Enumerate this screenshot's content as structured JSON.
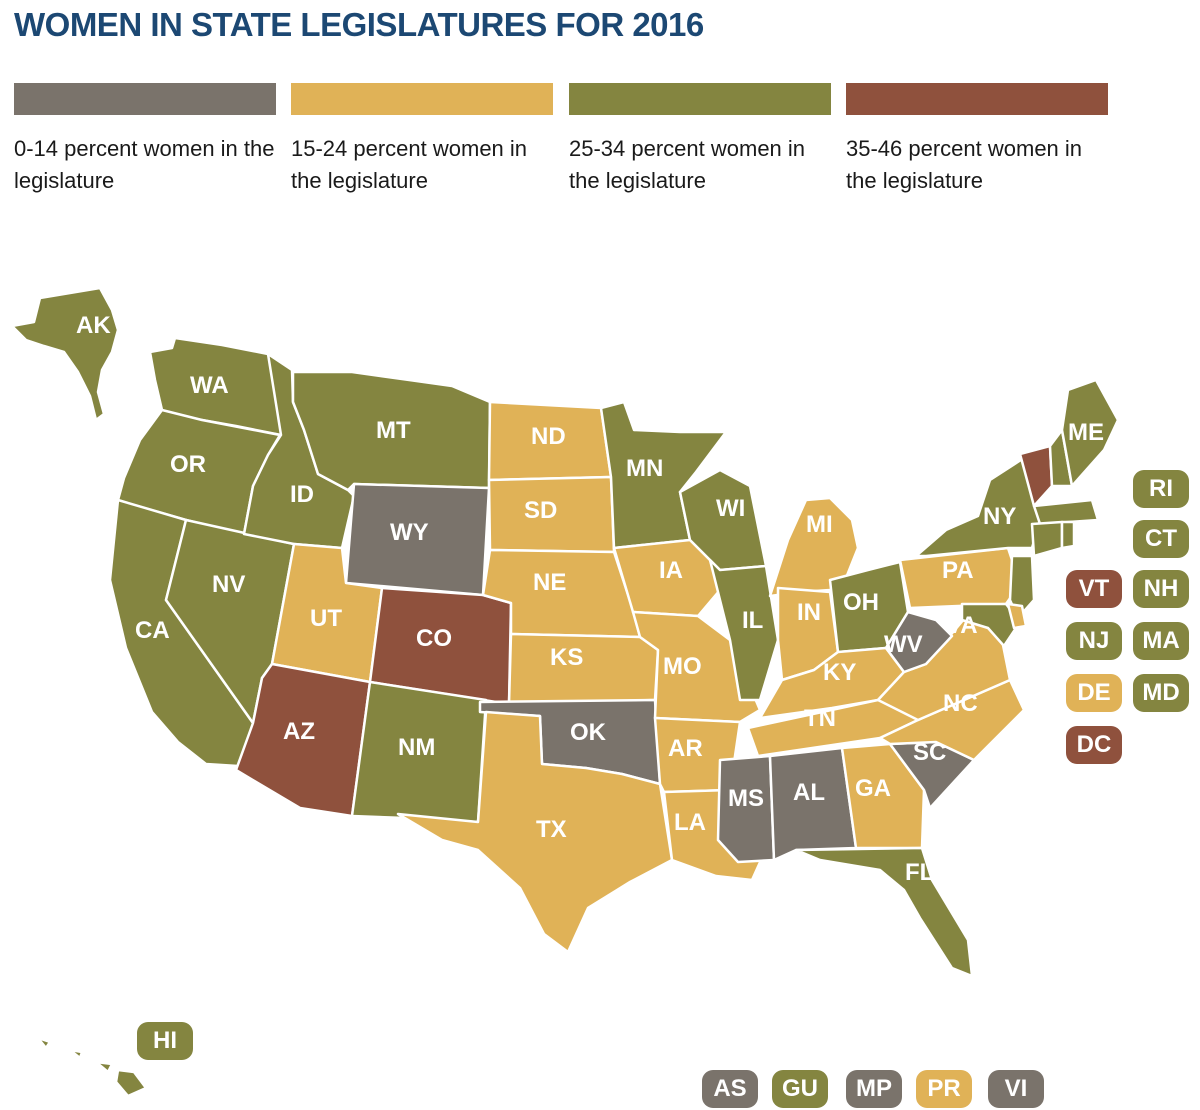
{
  "title": "WOMEN IN STATE LEGISLATURES FOR 2016",
  "legend": [
    {
      "label": "0-14 percent women in the legislature",
      "color": "#7a736b"
    },
    {
      "label": "15-24 percent women in the legislature",
      "color": "#e0b257"
    },
    {
      "label": "25-34 percent women in the legislature",
      "color": "#848540"
    },
    {
      "label": "35-46 percent women in the legislature",
      "color": "#8f513d"
    }
  ],
  "states": {
    "AK": 2,
    "WA": 2,
    "OR": 2,
    "CA": 2,
    "NV": 2,
    "ID": 2,
    "MT": 2,
    "WY": 0,
    "UT": 1,
    "AZ": 3,
    "CO": 3,
    "NM": 2,
    "ND": 1,
    "SD": 1,
    "NE": 1,
    "KS": 1,
    "OK": 0,
    "TX": 1,
    "MN": 2,
    "IA": 1,
    "MO": 1,
    "AR": 1,
    "LA": 1,
    "WI": 2,
    "IL": 2,
    "MI": 1,
    "IN": 1,
    "OH": 2,
    "KY": 1,
    "TN": 1,
    "MS": 0,
    "AL": 0,
    "GA": 1,
    "FL": 2,
    "SC": 0,
    "NC": 1,
    "VA": 1,
    "WV": 0,
    "PA": 1,
    "NY": 2,
    "VT": 3,
    "ME": 2,
    "NH": 2,
    "MA": 2,
    "RI": 2,
    "CT": 2,
    "NJ": 2,
    "DE": 1,
    "MD": 2,
    "DC": 3,
    "HI": 2
  },
  "small_boxes": [
    "RI",
    "CT",
    "VT",
    "NH",
    "NJ",
    "MA",
    "DE",
    "MD",
    "DC"
  ],
  "territories": [
    {
      "code": "AS",
      "cat": 0
    },
    {
      "code": "GU",
      "cat": 2
    },
    {
      "code": "MP",
      "cat": 0
    },
    {
      "code": "PR",
      "cat": 1
    },
    {
      "code": "VI",
      "cat": 0
    }
  ]
}
